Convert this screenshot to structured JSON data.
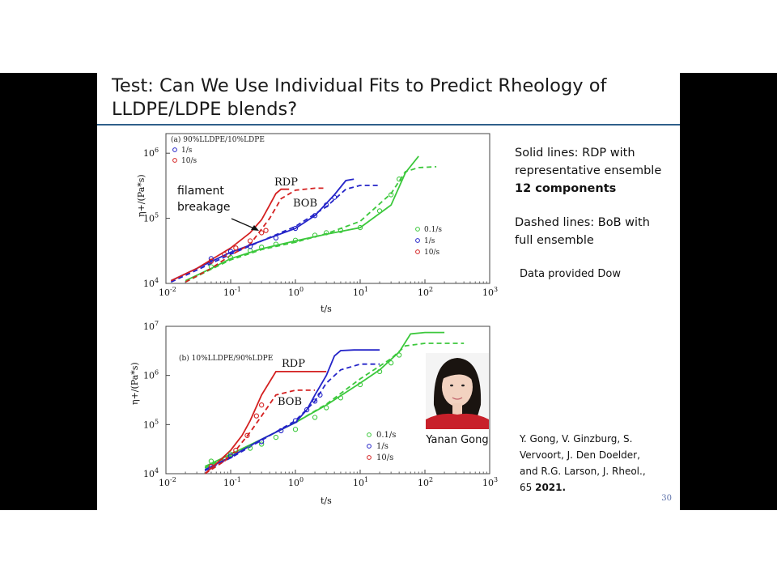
{
  "slide": {
    "title_line1": "Test: Can We Use Individual Fits to Predict Rheology of",
    "title_line2": "LLDPE/LDPE blends?",
    "notes": {
      "solid_line1": "Solid lines: RDP with",
      "solid_line2": "representative ensemble",
      "solid_line3": "12 components",
      "dashed_line1": "Dashed lines: BoB with",
      "dashed_line2": "full ensemble",
      "data_note": "Data provided Dow"
    },
    "citation": {
      "line1": "Y. Gong, V. Ginzburg, S.",
      "line2": "Vervoort, J. Den Doelder,",
      "line3": "and R.G. Larson, J. Rheol.,",
      "line4_prefix": "65 ",
      "line4_year": "2021."
    },
    "page_number": "30",
    "photo_caption": "Yanan Gong"
  },
  "chart_data": [
    {
      "type": "line",
      "panel_label": "(a) 90%LLDPE/10%LDPE",
      "xlabel": "t/s",
      "ylabel": "η+/(Pa*s)",
      "xscale": "log",
      "yscale": "log",
      "xlim": [
        0.01,
        1000
      ],
      "ylim": [
        10000,
        2000000
      ],
      "xticks": [
        "10-2",
        "10-1",
        "100",
        "101",
        "102",
        "103"
      ],
      "yticks": [
        "104",
        "105",
        "106"
      ],
      "legend_top": [
        "1/s",
        "10/s"
      ],
      "legend_bottom": [
        "0.1/s",
        "1/s",
        "10/s"
      ],
      "annotations": [
        "RDP",
        "BOB",
        "filament",
        "breakage"
      ],
      "colors": {
        "0.1/s": "#3cc83c",
        "1/s": "#2424c8",
        "10/s": "#d42020"
      },
      "series": [
        {
          "name": "0.1/s",
          "style": "solid",
          "x": [
            0.02,
            0.05,
            0.1,
            0.3,
            1,
            3,
            10,
            30,
            50,
            80
          ],
          "y": [
            11000,
            17000,
            24000,
            34000,
            45000,
            57000,
            72000,
            160000,
            500000,
            900000
          ]
        },
        {
          "name": "0.1/s",
          "style": "dashed",
          "x": [
            0.02,
            0.05,
            0.1,
            0.3,
            1,
            3,
            10,
            30,
            50,
            80,
            150
          ],
          "y": [
            10500,
            16500,
            23000,
            33000,
            43000,
            58000,
            90000,
            240000,
            520000,
            600000,
            620000
          ]
        },
        {
          "name": "0.1/s",
          "style": "markers",
          "x": [
            0.05,
            0.1,
            0.2,
            0.3,
            0.5,
            1,
            2,
            3,
            5,
            10,
            20,
            30,
            40
          ],
          "y": [
            18000,
            25000,
            32000,
            36000,
            40000,
            46000,
            55000,
            60000,
            65000,
            72000,
            130000,
            230000,
            400000
          ]
        },
        {
          "name": "1/s",
          "style": "solid",
          "x": [
            0.012,
            0.03,
            0.1,
            0.3,
            1,
            2,
            4,
            6,
            8
          ],
          "y": [
            11000,
            17000,
            30000,
            45000,
            70000,
            110000,
            230000,
            380000,
            400000
          ]
        },
        {
          "name": "1/s",
          "style": "dashed",
          "x": [
            0.012,
            0.03,
            0.1,
            0.3,
            1,
            3,
            6,
            10,
            20
          ],
          "y": [
            10500,
            16000,
            28000,
            45000,
            75000,
            150000,
            280000,
            320000,
            320000
          ]
        },
        {
          "name": "1/s",
          "style": "markers",
          "x": [
            0.05,
            0.1,
            0.2,
            0.5,
            1,
            2,
            3,
            4
          ],
          "y": [
            24000,
            31000,
            37000,
            50000,
            70000,
            110000,
            160000,
            210000
          ]
        },
        {
          "name": "10/s",
          "style": "solid",
          "x": [
            0.012,
            0.03,
            0.1,
            0.2,
            0.3,
            0.4,
            0.5,
            0.6,
            0.8
          ],
          "y": [
            11000,
            17000,
            35000,
            60000,
            95000,
            160000,
            240000,
            280000,
            280000
          ]
        },
        {
          "name": "10/s",
          "style": "dashed",
          "x": [
            0.02,
            0.05,
            0.1,
            0.2,
            0.4,
            0.6,
            1,
            2,
            3
          ],
          "y": [
            10500,
            17000,
            27000,
            40000,
            100000,
            200000,
            270000,
            290000,
            290000
          ]
        },
        {
          "name": "10/s",
          "style": "markers",
          "x": [
            0.05,
            0.08,
            0.12,
            0.2,
            0.3,
            0.35
          ],
          "y": [
            22000,
            28000,
            35000,
            45000,
            60000,
            65000
          ]
        }
      ]
    },
    {
      "type": "line",
      "panel_label": "(b) 10%LLDPE/90%LDPE",
      "xlabel": "t/s",
      "ylabel": "η+/(Pa*s)",
      "xscale": "log",
      "yscale": "log",
      "xlim": [
        0.01,
        1000
      ],
      "ylim": [
        10000,
        10000000
      ],
      "xticks": [
        "10-2",
        "10-1",
        "100",
        "101",
        "102",
        "103"
      ],
      "yticks": [
        "104",
        "105",
        "106",
        "107"
      ],
      "legend": [
        "0.1/s",
        "1/s",
        "10/s"
      ],
      "annotations": [
        "RDP",
        "BOB"
      ],
      "series": [
        {
          "name": "0.1/s",
          "style": "solid",
          "x": [
            0.04,
            0.1,
            0.3,
            1,
            3,
            10,
            20,
            40,
            60,
            100,
            200
          ],
          "y": [
            14000,
            25000,
            50000,
            110000,
            250000,
            700000,
            1300000,
            3000000,
            7000000,
            7500000,
            7500000
          ]
        },
        {
          "name": "0.1/s",
          "style": "dashed",
          "x": [
            0.04,
            0.1,
            0.3,
            1,
            3,
            10,
            30,
            50,
            100,
            200,
            400
          ],
          "y": [
            13000,
            24000,
            50000,
            110000,
            260000,
            850000,
            2200000,
            4000000,
            4500000,
            4500000,
            4500000
          ]
        },
        {
          "name": "0.1/s",
          "style": "markers",
          "x": [
            0.05,
            0.1,
            0.2,
            0.3,
            0.5,
            1,
            2,
            3,
            5,
            10,
            20,
            30,
            40
          ],
          "y": [
            18000,
            25000,
            33000,
            40000,
            55000,
            80000,
            140000,
            220000,
            350000,
            650000,
            1200000,
            1800000,
            2600000
          ]
        },
        {
          "name": "1/s",
          "style": "solid",
          "x": [
            0.04,
            0.1,
            0.3,
            1,
            1.5,
            2,
            3,
            4,
            5,
            8,
            20
          ],
          "y": [
            12000,
            22000,
            50000,
            110000,
            200000,
            400000,
            1000000,
            2500000,
            3200000,
            3300000,
            3300000
          ]
        },
        {
          "name": "1/s",
          "style": "dashed",
          "x": [
            0.04,
            0.1,
            0.3,
            1,
            2,
            3,
            5,
            10,
            20
          ],
          "y": [
            11500,
            21000,
            48000,
            120000,
            300000,
            700000,
            1300000,
            1700000,
            1700000
          ]
        },
        {
          "name": "1/s",
          "style": "markers",
          "x": [
            0.05,
            0.1,
            0.3,
            0.6,
            1,
            1.5,
            2,
            2.4
          ],
          "y": [
            14000,
            23000,
            45000,
            75000,
            120000,
            200000,
            300000,
            400000
          ]
        },
        {
          "name": "10/s",
          "style": "solid",
          "x": [
            0.04,
            0.06,
            0.1,
            0.15,
            0.2,
            0.3,
            0.5,
            1,
            3
          ],
          "y": [
            10000,
            16000,
            30000,
            60000,
            120000,
            400000,
            1200000,
            1200000,
            1200000
          ]
        },
        {
          "name": "10/s",
          "style": "dashed",
          "x": [
            0.04,
            0.08,
            0.12,
            0.2,
            0.3,
            0.5,
            1,
            2
          ],
          "y": [
            10000,
            18000,
            30000,
            70000,
            150000,
            400000,
            500000,
            500000
          ]
        },
        {
          "name": "10/s",
          "style": "markers",
          "x": [
            0.05,
            0.08,
            0.12,
            0.18,
            0.25,
            0.3
          ],
          "y": [
            14000,
            20000,
            30000,
            60000,
            150000,
            250000
          ]
        }
      ]
    }
  ]
}
